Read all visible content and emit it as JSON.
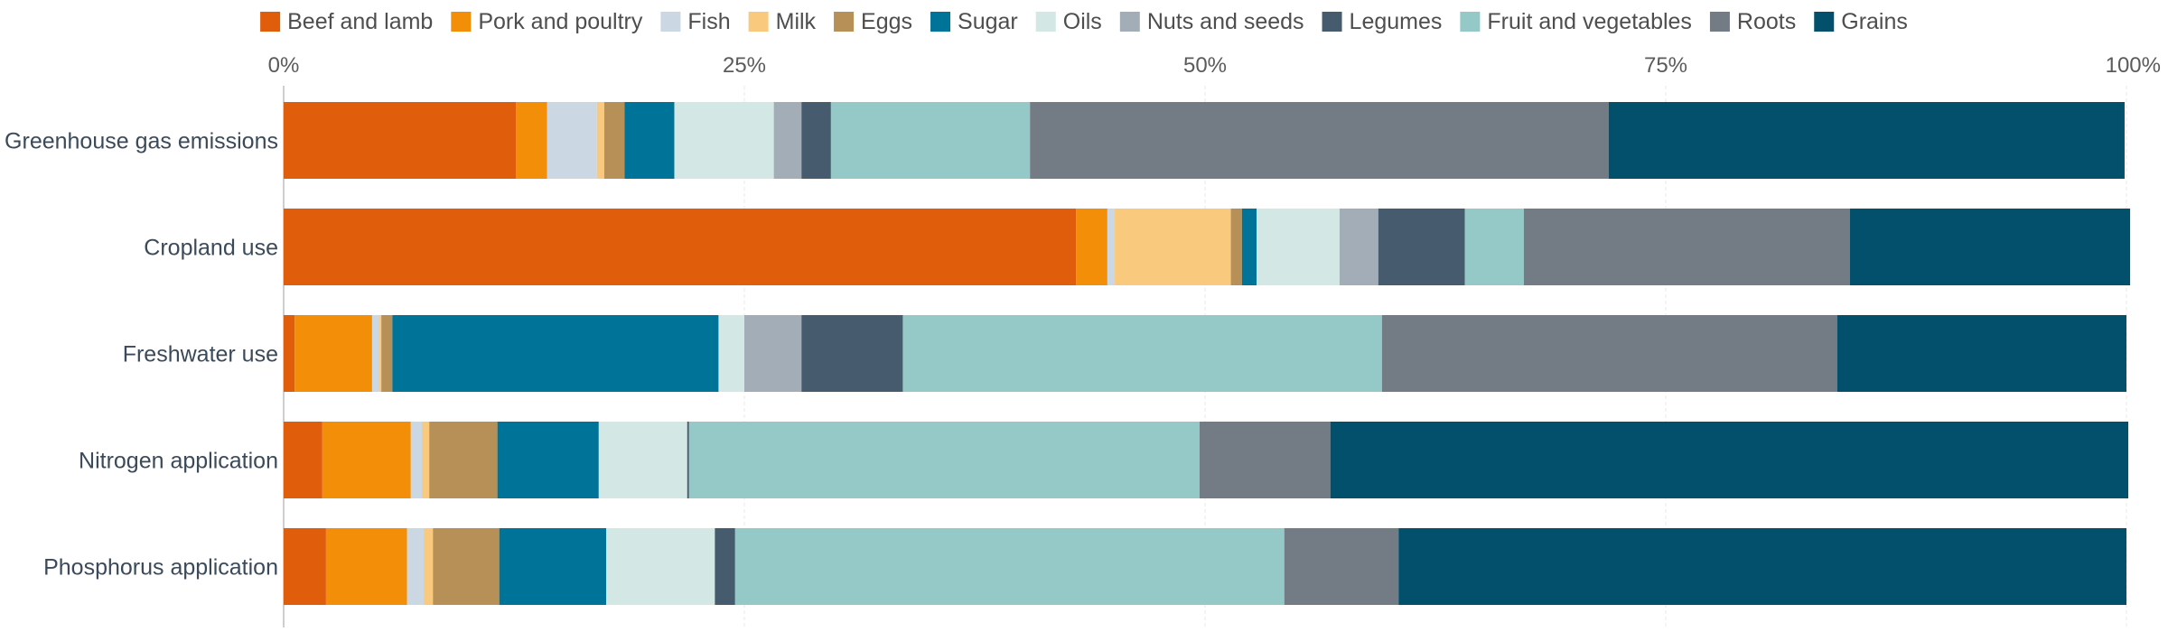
{
  "chart_data": {
    "type": "bar",
    "orientation": "horizontal",
    "stacked": true,
    "title": "",
    "xlabel": "",
    "ylabel": "",
    "xlim": [
      0,
      100
    ],
    "x_ticks": [
      0,
      25,
      50,
      75,
      100
    ],
    "x_tick_labels": [
      "0%",
      "25%",
      "50%",
      "75%",
      "100%"
    ],
    "x_axis_position": "top",
    "grid": true,
    "legend_position": "top",
    "categories": [
      "Greenhouse gas emissions",
      "Cropland use",
      "Freshwater use",
      "Nitrogen application",
      "Phosphorus application"
    ],
    "series": [
      {
        "name": "Beef and lamb",
        "color": "#e05e0b",
        "values": [
          12.6,
          43.0,
          0.6,
          2.1,
          2.3
        ]
      },
      {
        "name": "Pork and poultry",
        "color": "#f28e07",
        "values": [
          1.7,
          1.7,
          4.2,
          4.8,
          4.4
        ]
      },
      {
        "name": "Fish",
        "color": "#ccd7e4",
        "values": [
          2.7,
          0.4,
          0.4,
          0.6,
          0.9
        ]
      },
      {
        "name": "Milk",
        "color": "#f9c97e",
        "values": [
          0.4,
          6.3,
          0.1,
          0.4,
          0.5
        ]
      },
      {
        "name": "Eggs",
        "color": "#b79058",
        "values": [
          1.1,
          0.6,
          0.6,
          3.7,
          3.6
        ]
      },
      {
        "name": "Sugar",
        "color": "#007398",
        "values": [
          2.7,
          0.8,
          17.7,
          5.5,
          5.8
        ]
      },
      {
        "name": "Oils",
        "color": "#d3e7e4",
        "values": [
          5.4,
          4.5,
          1.4,
          4.8,
          5.9
        ]
      },
      {
        "name": "Nuts and seeds",
        "color": "#a3adb8",
        "values": [
          1.5,
          2.1,
          3.1,
          0.0,
          0.0
        ]
      },
      {
        "name": "Legumes",
        "color": "#465b6d",
        "values": [
          1.6,
          4.7,
          5.5,
          0.1,
          1.1
        ]
      },
      {
        "name": "Fruit and vegetables",
        "color": "#95c9c8",
        "values": [
          10.8,
          3.2,
          26.0,
          27.7,
          29.8
        ]
      },
      {
        "name": "Roots",
        "color": "#737b85",
        "values": [
          31.4,
          17.7,
          24.7,
          7.1,
          6.2
        ]
      },
      {
        "name": "Grains",
        "color": "#02506b",
        "values": [
          28.0,
          15.2,
          15.7,
          43.3,
          39.5
        ]
      }
    ]
  }
}
